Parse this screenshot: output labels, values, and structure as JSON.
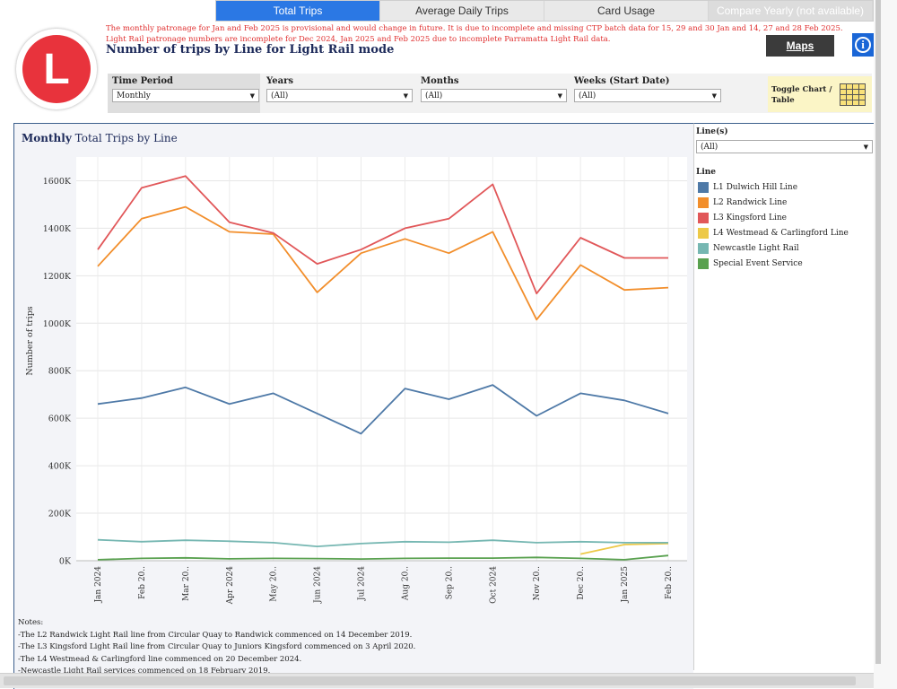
{
  "tabs": [
    {
      "label": "Total Trips",
      "active": true
    },
    {
      "label": "Average Daily Trips",
      "active": false
    },
    {
      "label": "Card Usage",
      "active": false
    },
    {
      "label": "Compare Yearly (not available)",
      "active": false
    }
  ],
  "logo": {
    "letter": "L"
  },
  "notices": {
    "line1": "The monthly patronage for Jan and Feb 2025 is provisional and would change in future. It is due to incomplete and missing CTP batch data for 15, 29 and 30 Jan and 14, 27 and 28 Feb 2025.",
    "line2": "Light Rail patronage numbers are incomplete for Dec 2024, Jan 2025 and Feb 2025 due to incomplete Parramatta Light Rail data."
  },
  "page_title": "Number of trips by Line for Light Rail mode",
  "buttons": {
    "maps": "Maps",
    "info": "i"
  },
  "filters": {
    "time_period": {
      "label": "Time Period",
      "value": "Monthly"
    },
    "years": {
      "label": "Years",
      "value": "(All)"
    },
    "months": {
      "label": "Months",
      "value": "(All)"
    },
    "weeks": {
      "label": "Weeks (Start Date)",
      "value": "(All)"
    },
    "toggle": {
      "line1": "Toggle Chart /",
      "line2": "Table"
    }
  },
  "chart_title": {
    "bold": "Monthly",
    "rest": "Total Trips by Line"
  },
  "side": {
    "lines_label": "Line(s)",
    "lines_value": "(All)",
    "legend_label": "Line"
  },
  "notes": [
    "Notes:",
    "-The L2 Randwick Light Rail line from Circular Quay to Randwick commenced on 14 December 2019.",
    "-The L3 Kingsford Light Rail line from Circular Quay to Juniors Kingsford commenced on 3 April 2020.",
    "-The L4 Westmead & Carlingford line commenced on 20 December 2024.",
    "-Newcastle Light Rail services commenced on 18 February 2019."
  ],
  "chart_data": {
    "type": "line",
    "ylabel": "Number of trips",
    "ylim": [
      0,
      1700000
    ],
    "yticks": [
      0,
      200000,
      400000,
      600000,
      800000,
      1000000,
      1200000,
      1400000,
      1600000
    ],
    "ytick_labels": [
      "0K",
      "200K",
      "400K",
      "600K",
      "800K",
      "1000K",
      "1200K",
      "1400K",
      "1600K"
    ],
    "categories": [
      "Jan 2024",
      "Feb 20..",
      "Mar 20..",
      "Apr 2024",
      "May 20..",
      "Jun 2024",
      "Jul 2024",
      "Aug 20..",
      "Sep 20..",
      "Oct 2024",
      "Nov 20..",
      "Dec 20..",
      "Jan 2025",
      "Feb 20.."
    ],
    "grid": true,
    "legend": "right",
    "series": [
      {
        "name": "L1 Dulwich Hill Line",
        "color": "#4e79a7",
        "values": [
          660000,
          685000,
          730000,
          660000,
          705000,
          620000,
          535000,
          725000,
          680000,
          740000,
          610000,
          705000,
          675000,
          620000
        ]
      },
      {
        "name": "L2 Randwick Line",
        "color": "#f28e2b",
        "values": [
          1240000,
          1440000,
          1490000,
          1385000,
          1375000,
          1130000,
          1295000,
          1355000,
          1295000,
          1385000,
          1015000,
          1245000,
          1140000,
          1150000
        ]
      },
      {
        "name": "L3 Kingsford Line",
        "color": "#e15759",
        "values": [
          1310000,
          1570000,
          1620000,
          1425000,
          1380000,
          1250000,
          1310000,
          1400000,
          1440000,
          1585000,
          1125000,
          1360000,
          1275000,
          1275000
        ]
      },
      {
        "name": "L4 Westmead & Carlingford Line",
        "color": "#edc948",
        "values": [
          null,
          null,
          null,
          null,
          null,
          null,
          null,
          null,
          null,
          null,
          null,
          28000,
          68000,
          72000
        ]
      },
      {
        "name": "Newcastle Light Rail",
        "color": "#76b7b2",
        "values": [
          88000,
          80000,
          86000,
          82000,
          76000,
          60000,
          72000,
          80000,
          78000,
          86000,
          76000,
          80000,
          76000,
          76000
        ]
      },
      {
        "name": "Special Event Service",
        "color": "#59a14f",
        "values": [
          4000,
          10000,
          12000,
          8000,
          10000,
          9000,
          7000,
          10000,
          11000,
          11000,
          14000,
          10000,
          4000,
          22000
        ]
      }
    ]
  }
}
